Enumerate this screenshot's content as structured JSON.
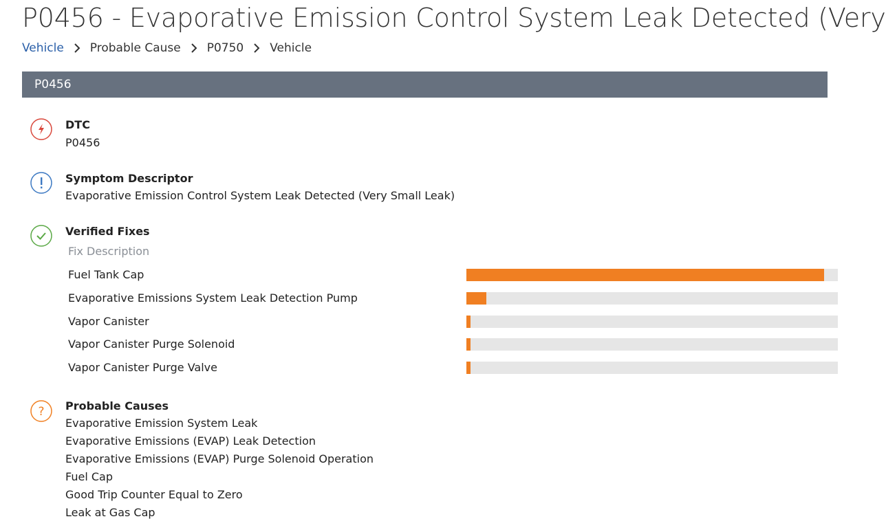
{
  "title": "P0456 - Evaporative Emission Control System Leak Detected (Very",
  "breadcrumb": [
    "Vehicle",
    "Probable Cause",
    "P0750",
    "Vehicle"
  ],
  "panel": {
    "header": "P0456",
    "dtc": {
      "label": "DTC",
      "value": "P0456"
    },
    "symptom": {
      "label": "Symptom Descriptor",
      "value": "Evaporative Emission Control System Leak Detected (Very Small Leak)"
    },
    "verified_fixes": {
      "label": "Verified Fixes",
      "column": "Fix Description",
      "items": [
        "Fuel Tank Cap",
        "Evaporative Emissions System Leak Detection Pump",
        "Vapor Canister",
        "Vapor Canister Purge Solenoid",
        "Vapor Canister Purge Valve"
      ],
      "values": [
        100,
        5.5,
        1.2,
        1.2,
        1.2
      ],
      "color": "#f07f22",
      "track_color": "#e6e6e6"
    },
    "probable_causes": {
      "label": "Probable Causes",
      "items": [
        "Evaporative Emission System Leak",
        "Evaporative Emissions (EVAP) Leak Detection",
        "Evaporative Emissions (EVAP) Purge Solenoid Operation",
        "Fuel Cap",
        "Good Trip Counter Equal to Zero",
        "Leak at Gas Cap"
      ]
    }
  }
}
